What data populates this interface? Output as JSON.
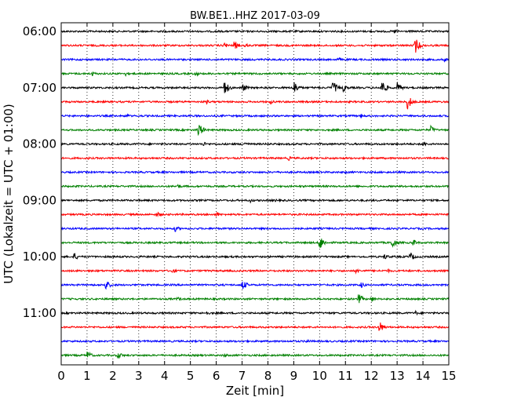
{
  "chart_data": {
    "type": "line",
    "title": "BW.BE1..HHZ 2017-03-09",
    "xlabel": "Zeit  [min]",
    "ylabel": "UTC (Lokalzeit = UTC + 01:00)",
    "xlim": [
      0,
      15
    ],
    "xticks": [
      "0",
      "1",
      "2",
      "3",
      "4",
      "5",
      "6",
      "7",
      "8",
      "9",
      "10",
      "11",
      "12",
      "13",
      "14",
      "15"
    ],
    "yticks": [
      {
        "label": "06:00",
        "row": 0
      },
      {
        "label": "07:00",
        "row": 4
      },
      {
        "label": "08:00",
        "row": 8
      },
      {
        "label": "09:00",
        "row": 12
      },
      {
        "label": "10:00",
        "row": 16
      },
      {
        "label": "11:00",
        "row": 20
      }
    ],
    "grid": "vertical dotted",
    "colors": [
      "#000000",
      "#ff0000",
      "#0000ff",
      "#008000"
    ],
    "traces": [
      {
        "start": "06:00",
        "color": "#000000",
        "events": [
          {
            "t": 12.9,
            "amp": 0.3
          }
        ]
      },
      {
        "start": "06:15",
        "color": "#ff0000",
        "events": [
          {
            "t": 6.3,
            "amp": 0.4
          },
          {
            "t": 6.7,
            "amp": 0.6
          },
          {
            "t": 7.1,
            "amp": 0.3
          },
          {
            "t": 13.7,
            "amp": 1.0
          }
        ]
      },
      {
        "start": "06:30",
        "color": "#0000ff",
        "events": [
          {
            "t": 10.7,
            "amp": 0.3
          },
          {
            "t": 14.8,
            "amp": 0.3
          }
        ]
      },
      {
        "start": "06:45",
        "color": "#008000",
        "events": [
          {
            "t": 1.2,
            "amp": 0.3
          },
          {
            "t": 2.5,
            "amp": 0.3
          },
          {
            "t": 5.2,
            "amp": 0.3
          }
        ]
      },
      {
        "start": "07:00",
        "color": "#000000",
        "events": [
          {
            "t": 6.3,
            "amp": 1.0
          },
          {
            "t": 7.0,
            "amp": 0.6
          },
          {
            "t": 9.0,
            "amp": 0.9
          },
          {
            "t": 10.5,
            "amp": 0.9
          },
          {
            "t": 10.9,
            "amp": 0.5
          },
          {
            "t": 12.4,
            "amp": 1.0
          },
          {
            "t": 13.0,
            "amp": 0.7
          }
        ]
      },
      {
        "start": "07:15",
        "color": "#ff0000",
        "events": [
          {
            "t": 5.6,
            "amp": 0.3
          },
          {
            "t": 8.1,
            "amp": 0.3
          },
          {
            "t": 13.4,
            "amp": 1.0
          }
        ]
      },
      {
        "start": "07:30",
        "color": "#0000ff",
        "events": [
          {
            "t": 2.5,
            "amp": 0.3
          },
          {
            "t": 11.6,
            "amp": 0.3
          }
        ]
      },
      {
        "start": "07:45",
        "color": "#008000",
        "events": [
          {
            "t": 5.3,
            "amp": 1.0
          },
          {
            "t": 14.3,
            "amp": 0.5
          }
        ]
      },
      {
        "start": "08:00",
        "color": "#000000",
        "events": [
          {
            "t": 5.5,
            "amp": 0.3
          },
          {
            "t": 7.1,
            "amp": 0.3
          },
          {
            "t": 14.0,
            "amp": 0.3
          }
        ]
      },
      {
        "start": "08:15",
        "color": "#ff0000",
        "events": [
          {
            "t": 1.0,
            "amp": 0.2
          },
          {
            "t": 8.8,
            "amp": 0.3
          }
        ]
      },
      {
        "start": "08:30",
        "color": "#0000ff",
        "events": [
          {
            "t": 11.0,
            "amp": 0.2
          }
        ]
      },
      {
        "start": "08:45",
        "color": "#008000",
        "events": [
          {
            "t": 4.5,
            "amp": 0.3
          },
          {
            "t": 13.3,
            "amp": 0.2
          }
        ]
      },
      {
        "start": "09:00",
        "color": "#000000",
        "events": [
          {
            "t": 7.3,
            "amp": 0.3
          },
          {
            "t": 8.3,
            "amp": 0.2
          }
        ]
      },
      {
        "start": "09:15",
        "color": "#ff0000",
        "events": [
          {
            "t": 3.7,
            "amp": 0.4
          },
          {
            "t": 6.0,
            "amp": 0.3
          }
        ]
      },
      {
        "start": "09:30",
        "color": "#0000ff",
        "events": [
          {
            "t": 4.4,
            "amp": 0.4
          }
        ]
      },
      {
        "start": "09:45",
        "color": "#008000",
        "events": [
          {
            "t": 10.0,
            "amp": 1.0
          },
          {
            "t": 12.8,
            "amp": 0.8
          },
          {
            "t": 13.6,
            "amp": 0.5
          }
        ]
      },
      {
        "start": "10:00",
        "color": "#000000",
        "events": [
          {
            "t": 0.5,
            "amp": 0.5
          },
          {
            "t": 12.5,
            "amp": 0.4
          },
          {
            "t": 13.5,
            "amp": 0.6
          }
        ]
      },
      {
        "start": "10:15",
        "color": "#ff0000",
        "events": [
          {
            "t": 4.3,
            "amp": 0.3
          },
          {
            "t": 11.4,
            "amp": 0.4
          },
          {
            "t": 12.6,
            "amp": 0.3
          }
        ]
      },
      {
        "start": "10:30",
        "color": "#0000ff",
        "events": [
          {
            "t": 1.7,
            "amp": 0.7
          },
          {
            "t": 7.0,
            "amp": 0.7
          },
          {
            "t": 11.6,
            "amp": 0.4
          }
        ]
      },
      {
        "start": "10:45",
        "color": "#008000",
        "events": [
          {
            "t": 4.5,
            "amp": 0.3
          },
          {
            "t": 11.5,
            "amp": 0.7
          },
          {
            "t": 12.0,
            "amp": 0.4
          }
        ]
      },
      {
        "start": "11:00",
        "color": "#000000",
        "events": [
          {
            "t": 5.6,
            "amp": 0.3
          },
          {
            "t": 13.7,
            "amp": 0.3
          }
        ]
      },
      {
        "start": "11:15",
        "color": "#ff0000",
        "events": [
          {
            "t": 12.3,
            "amp": 0.8
          }
        ]
      },
      {
        "start": "11:30",
        "color": "#0000ff",
        "events": [
          {
            "t": 9.5,
            "amp": 0.3
          }
        ]
      },
      {
        "start": "11:45",
        "color": "#008000",
        "events": [
          {
            "t": 1.0,
            "amp": 0.6
          },
          {
            "t": 2.2,
            "amp": 0.5
          },
          {
            "t": 6.3,
            "amp": 0.3
          }
        ]
      }
    ]
  }
}
